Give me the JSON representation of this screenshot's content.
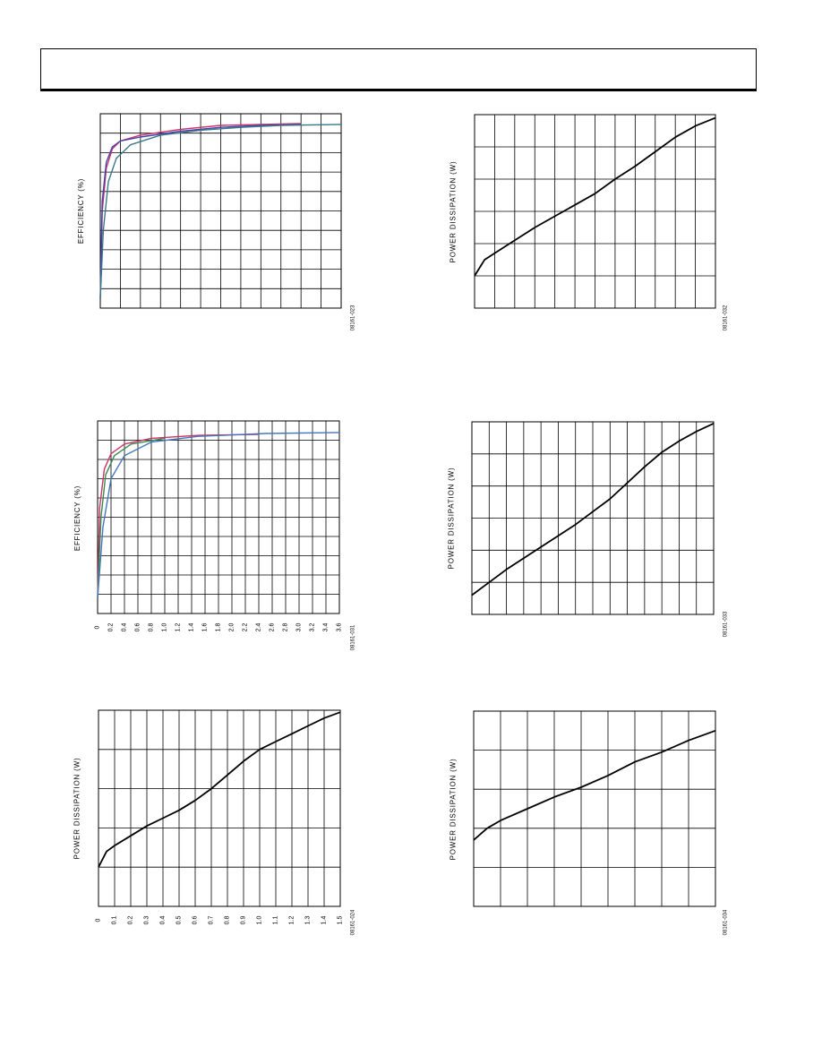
{
  "header": {
    "title": ""
  },
  "chart_data": [
    {
      "type": "line",
      "id": "c1",
      "ylabel": "EFFICIENCY (%)",
      "figure_code": "08161-023",
      "xlim": [
        0,
        12
      ],
      "ylim": [
        0,
        100
      ],
      "x_divisions": 12,
      "y_divisions": 10,
      "series": [
        {
          "color": "#cc3366",
          "points": [
            [
              0,
              5
            ],
            [
              0.1,
              50
            ],
            [
              0.3,
              72
            ],
            [
              0.6,
              82
            ],
            [
              1,
              86
            ],
            [
              2,
              89
            ],
            [
              4,
              92
            ],
            [
              6,
              94
            ],
            [
              8,
              94.5
            ],
            [
              10,
              95
            ]
          ]
        },
        {
          "color": "#4444aa",
          "points": [
            [
              0,
              5
            ],
            [
              0.1,
              55
            ],
            [
              0.3,
              75
            ],
            [
              0.6,
              83
            ],
            [
              1,
              86
            ],
            [
              2,
              88
            ],
            [
              4,
              91
            ],
            [
              6,
              93
            ],
            [
              8,
              94
            ],
            [
              10,
              94.5
            ]
          ]
        },
        {
          "color": "#3a7a88",
          "points": [
            [
              0,
              5
            ],
            [
              0.15,
              40
            ],
            [
              0.4,
              65
            ],
            [
              0.8,
              77
            ],
            [
              1.5,
              84
            ],
            [
              3,
              89
            ],
            [
              5,
              91.5
            ],
            [
              7,
              93
            ],
            [
              9,
              94
            ],
            [
              12,
              94.5
            ]
          ]
        }
      ]
    },
    {
      "type": "line",
      "id": "c2",
      "ylabel": "POWER DISSIPATION (W)",
      "figure_code": "08161-032",
      "xlim": [
        0,
        12
      ],
      "ylim": [
        0,
        6
      ],
      "x_divisions": 12,
      "y_divisions": 6,
      "series": [
        {
          "color": "#000000",
          "points": [
            [
              0,
              1.0
            ],
            [
              0.5,
              1.5
            ],
            [
              1,
              1.7
            ],
            [
              2,
              2.1
            ],
            [
              3,
              2.5
            ],
            [
              4,
              2.85
            ],
            [
              5,
              3.2
            ],
            [
              6,
              3.55
            ],
            [
              7,
              4.0
            ],
            [
              8,
              4.4
            ],
            [
              9,
              4.85
            ],
            [
              10,
              5.3
            ],
            [
              11,
              5.65
            ],
            [
              12,
              5.9
            ]
          ]
        }
      ]
    },
    {
      "type": "line",
      "id": "c3",
      "ylabel": "EFFICIENCY (%)",
      "figure_code": "08161-031",
      "xlim": [
        0,
        3.6
      ],
      "ylim": [
        0,
        100
      ],
      "x_divisions": 18,
      "y_divisions": 10,
      "xticks": [
        "0",
        "0.2",
        "0.4",
        "0.6",
        "0.8",
        "1.0",
        "1.2",
        "1.4",
        "1.6",
        "1.8",
        "2.0",
        "2.2",
        "2.4",
        "2.6",
        "2.8",
        "3.0",
        "3.2",
        "3.4",
        "3.6"
      ],
      "series": [
        {
          "color": "#cc3366",
          "points": [
            [
              0,
              8
            ],
            [
              0.03,
              55
            ],
            [
              0.1,
              75
            ],
            [
              0.2,
              83
            ],
            [
              0.4,
              88
            ],
            [
              0.8,
              91
            ],
            [
              1.5,
              92.5
            ],
            [
              2.4,
              93
            ]
          ]
        },
        {
          "color": "#3a8a55",
          "points": [
            [
              0,
              8
            ],
            [
              0.05,
              50
            ],
            [
              0.12,
              72
            ],
            [
              0.25,
              82
            ],
            [
              0.5,
              88
            ],
            [
              1.0,
              91
            ]
          ]
        },
        {
          "color": "#4477bb",
          "points": [
            [
              0,
              8
            ],
            [
              0.08,
              45
            ],
            [
              0.2,
              70
            ],
            [
              0.4,
              82
            ],
            [
              0.8,
              89
            ],
            [
              1.5,
              92
            ],
            [
              2.5,
              93.5
            ],
            [
              3.6,
              94
            ]
          ]
        }
      ]
    },
    {
      "type": "line",
      "id": "c4",
      "ylabel": "POWER DISSIPATION (W)",
      "figure_code": "08161-033",
      "xlim": [
        0,
        14
      ],
      "ylim": [
        0,
        6
      ],
      "x_divisions": 14,
      "y_divisions": 6,
      "series": [
        {
          "color": "#000000",
          "points": [
            [
              0,
              0.6
            ],
            [
              1,
              1.0
            ],
            [
              2,
              1.4
            ],
            [
              3,
              1.75
            ],
            [
              4,
              2.1
            ],
            [
              5,
              2.45
            ],
            [
              6,
              2.8
            ],
            [
              7,
              3.2
            ],
            [
              8,
              3.6
            ],
            [
              9,
              4.1
            ],
            [
              10,
              4.6
            ],
            [
              11,
              5.05
            ],
            [
              12,
              5.4
            ],
            [
              13,
              5.7
            ],
            [
              14,
              5.95
            ]
          ]
        }
      ]
    },
    {
      "type": "line",
      "id": "c5",
      "ylabel": "POWER DISSIPATION (W)",
      "figure_code": "08161-024",
      "xlim": [
        0,
        1.5
      ],
      "ylim": [
        0,
        5
      ],
      "x_divisions": 15,
      "y_divisions": 5,
      "xticks": [
        "0",
        "0.1",
        "0.2",
        "0.3",
        "0.4",
        "0.5",
        "0.6",
        "0.7",
        "0.8",
        "0.9",
        "1.0",
        "1.1",
        "1.2",
        "1.3",
        "1.4",
        "1.5"
      ],
      "series": [
        {
          "color": "#000000",
          "points": [
            [
              0,
              1.0
            ],
            [
              0.05,
              1.4
            ],
            [
              0.1,
              1.55
            ],
            [
              0.2,
              1.8
            ],
            [
              0.3,
              2.05
            ],
            [
              0.4,
              2.25
            ],
            [
              0.5,
              2.45
            ],
            [
              0.6,
              2.7
            ],
            [
              0.7,
              3.0
            ],
            [
              0.8,
              3.35
            ],
            [
              0.9,
              3.7
            ],
            [
              1.0,
              4.0
            ],
            [
              1.1,
              4.2
            ],
            [
              1.2,
              4.4
            ],
            [
              1.3,
              4.6
            ],
            [
              1.4,
              4.8
            ],
            [
              1.5,
              4.95
            ]
          ]
        }
      ]
    },
    {
      "type": "line",
      "id": "c6",
      "ylabel": "POWER DISSIPATION (W)",
      "figure_code": "08161-034",
      "xlim": [
        0,
        9
      ],
      "ylim": [
        0,
        5
      ],
      "x_divisions": 9,
      "y_divisions": 5,
      "series": [
        {
          "color": "#000000",
          "points": [
            [
              0,
              1.7
            ],
            [
              0.5,
              2.0
            ],
            [
              1,
              2.2
            ],
            [
              2,
              2.5
            ],
            [
              3,
              2.8
            ],
            [
              4,
              3.05
            ],
            [
              5,
              3.35
            ],
            [
              6,
              3.7
            ],
            [
              7,
              3.95
            ],
            [
              8,
              4.25
            ],
            [
              9,
              4.5
            ]
          ]
        }
      ]
    }
  ]
}
